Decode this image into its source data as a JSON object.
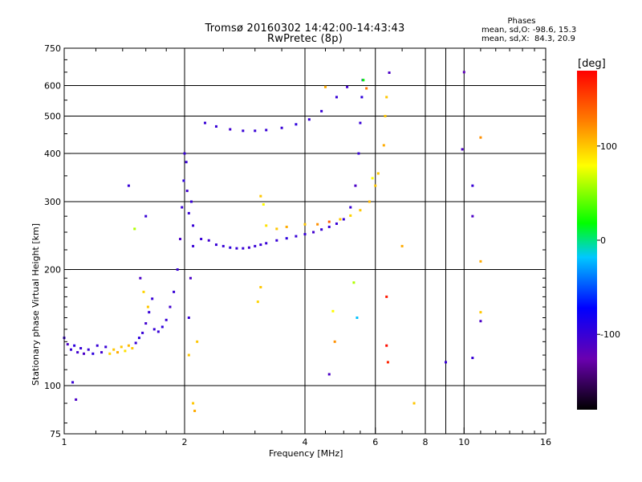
{
  "title": "Tromsø 20160302 14:42:00-14:43:43",
  "subtitle": "RwPretec (8p)",
  "phase_stats": {
    "heading": "Phases",
    "line_o": "mean, sd,O: -98.6, 15.3",
    "line_x": "mean, sd,X:  84.3, 20.9"
  },
  "colorbar": {
    "unit_label": "[deg]",
    "tick_labels": [
      "100",
      "0",
      "-100"
    ],
    "tick_values": [
      100,
      0,
      -100
    ],
    "range": [
      -180,
      180
    ]
  },
  "chart_data": {
    "type": "scatter",
    "title": "Tromsø 20160302 14:42:00-14:43:43",
    "subtitle": "RwPretec (8p)",
    "xlabel": "Frequency [MHz]",
    "ylabel": "Stationary phase Virtual Height [km]",
    "xscale": "log",
    "yscale": "log",
    "xlim": [
      1,
      16
    ],
    "ylim": [
      75,
      750
    ],
    "x_ticks": [
      1,
      2,
      4,
      6,
      8,
      10,
      16
    ],
    "x_tick_labels": [
      "1",
      "2",
      "4",
      "6",
      "8",
      "10",
      "16"
    ],
    "x_minor_ticks": [
      9
    ],
    "y_ticks": [
      75,
      100,
      200,
      300,
      400,
      500,
      600,
      750
    ],
    "y_tick_labels": [
      "75",
      "100",
      "200",
      "300",
      "400",
      "500",
      "600",
      "750"
    ],
    "y_minor_ticks": [
      150,
      250,
      350,
      450,
      550,
      650,
      700
    ],
    "grid": true,
    "color_scale": "rainbow",
    "series": [
      {
        "name": "",
        "points": [
          {
            "x": 1.0,
            "y": 133,
            "phase": -100
          },
          {
            "x": 1.02,
            "y": 128,
            "phase": -110
          },
          {
            "x": 1.04,
            "y": 124,
            "phase": -100
          },
          {
            "x": 1.06,
            "y": 127,
            "phase": -95
          },
          {
            "x": 1.08,
            "y": 122,
            "phase": -105
          },
          {
            "x": 1.1,
            "y": 125,
            "phase": -100
          },
          {
            "x": 1.12,
            "y": 121,
            "phase": -110
          },
          {
            "x": 1.15,
            "y": 124,
            "phase": -100
          },
          {
            "x": 1.18,
            "y": 121,
            "phase": -95
          },
          {
            "x": 1.21,
            "y": 127,
            "phase": -100
          },
          {
            "x": 1.24,
            "y": 122,
            "phase": -105
          },
          {
            "x": 1.27,
            "y": 126,
            "phase": -100
          },
          {
            "x": 1.3,
            "y": 121,
            "phase": 95
          },
          {
            "x": 1.33,
            "y": 124,
            "phase": 100
          },
          {
            "x": 1.36,
            "y": 122,
            "phase": 110
          },
          {
            "x": 1.39,
            "y": 126,
            "phase": 100
          },
          {
            "x": 1.42,
            "y": 123,
            "phase": 90
          },
          {
            "x": 1.45,
            "y": 127,
            "phase": 105
          },
          {
            "x": 1.48,
            "y": 125,
            "phase": 100
          },
          {
            "x": 1.51,
            "y": 129,
            "phase": -100
          },
          {
            "x": 1.54,
            "y": 133,
            "phase": -95
          },
          {
            "x": 1.57,
            "y": 137,
            "phase": -100
          },
          {
            "x": 1.6,
            "y": 145,
            "phase": -105
          },
          {
            "x": 1.63,
            "y": 155,
            "phase": -100
          },
          {
            "x": 1.66,
            "y": 168,
            "phase": -100
          },
          {
            "x": 1.55,
            "y": 190,
            "phase": -110
          },
          {
            "x": 1.58,
            "y": 175,
            "phase": 95
          },
          {
            "x": 1.62,
            "y": 160,
            "phase": 100
          },
          {
            "x": 1.68,
            "y": 140,
            "phase": -100
          },
          {
            "x": 1.72,
            "y": 138,
            "phase": -100
          },
          {
            "x": 1.76,
            "y": 142,
            "phase": -95
          },
          {
            "x": 1.8,
            "y": 148,
            "phase": -100
          },
          {
            "x": 1.84,
            "y": 160,
            "phase": -105
          },
          {
            "x": 1.88,
            "y": 175,
            "phase": -100
          },
          {
            "x": 1.92,
            "y": 200,
            "phase": -100
          },
          {
            "x": 1.95,
            "y": 240,
            "phase": -110
          },
          {
            "x": 1.97,
            "y": 290,
            "phase": -100
          },
          {
            "x": 1.99,
            "y": 340,
            "phase": -95
          },
          {
            "x": 2.0,
            "y": 400,
            "phase": -100
          },
          {
            "x": 2.02,
            "y": 380,
            "phase": -100
          },
          {
            "x": 2.03,
            "y": 320,
            "phase": -105
          },
          {
            "x": 2.05,
            "y": 280,
            "phase": -100
          },
          {
            "x": 2.08,
            "y": 300,
            "phase": -100
          },
          {
            "x": 2.1,
            "y": 260,
            "phase": -100
          },
          {
            "x": 2.05,
            "y": 150,
            "phase": -100
          },
          {
            "x": 2.07,
            "y": 190,
            "phase": -110
          },
          {
            "x": 2.1,
            "y": 230,
            "phase": -100
          },
          {
            "x": 2.2,
            "y": 240,
            "phase": -100
          },
          {
            "x": 2.3,
            "y": 238,
            "phase": -105
          },
          {
            "x": 2.4,
            "y": 232,
            "phase": -100
          },
          {
            "x": 2.5,
            "y": 230,
            "phase": -100
          },
          {
            "x": 2.6,
            "y": 228,
            "phase": -95
          },
          {
            "x": 2.7,
            "y": 227,
            "phase": -100
          },
          {
            "x": 2.8,
            "y": 227,
            "phase": -100
          },
          {
            "x": 2.9,
            "y": 228,
            "phase": -105
          },
          {
            "x": 3.0,
            "y": 230,
            "phase": -100
          },
          {
            "x": 3.1,
            "y": 232,
            "phase": -100
          },
          {
            "x": 3.2,
            "y": 234,
            "phase": -100
          },
          {
            "x": 3.4,
            "y": 238,
            "phase": -100
          },
          {
            "x": 3.6,
            "y": 241,
            "phase": -95
          },
          {
            "x": 3.8,
            "y": 244,
            "phase": -100
          },
          {
            "x": 4.0,
            "y": 247,
            "phase": -100
          },
          {
            "x": 4.2,
            "y": 250,
            "phase": -105
          },
          {
            "x": 4.4,
            "y": 254,
            "phase": -100
          },
          {
            "x": 4.6,
            "y": 258,
            "phase": -100
          },
          {
            "x": 4.8,
            "y": 263,
            "phase": -100
          },
          {
            "x": 5.0,
            "y": 270,
            "phase": -100
          },
          {
            "x": 5.2,
            "y": 290,
            "phase": -100
          },
          {
            "x": 5.35,
            "y": 330,
            "phase": -110
          },
          {
            "x": 5.45,
            "y": 400,
            "phase": -100
          },
          {
            "x": 5.5,
            "y": 480,
            "phase": -100
          },
          {
            "x": 5.55,
            "y": 560,
            "phase": -95
          },
          {
            "x": 5.58,
            "y": 620,
            "phase": -100
          },
          {
            "x": 2.25,
            "y": 480,
            "phase": -100
          },
          {
            "x": 2.4,
            "y": 470,
            "phase": -100
          },
          {
            "x": 2.6,
            "y": 462,
            "phase": -105
          },
          {
            "x": 2.8,
            "y": 458,
            "phase": -100
          },
          {
            "x": 3.0,
            "y": 458,
            "phase": -100
          },
          {
            "x": 3.2,
            "y": 460,
            "phase": -100
          },
          {
            "x": 3.5,
            "y": 466,
            "phase": -100
          },
          {
            "x": 3.8,
            "y": 476,
            "phase": -95
          },
          {
            "x": 4.1,
            "y": 490,
            "phase": -100
          },
          {
            "x": 4.4,
            "y": 515,
            "phase": -100
          },
          {
            "x": 4.8,
            "y": 560,
            "phase": -100
          },
          {
            "x": 5.1,
            "y": 595,
            "phase": -105
          },
          {
            "x": 3.2,
            "y": 260,
            "phase": 90
          },
          {
            "x": 3.4,
            "y": 255,
            "phase": 100
          },
          {
            "x": 3.6,
            "y": 258,
            "phase": 110
          },
          {
            "x": 4.0,
            "y": 262,
            "phase": 100
          },
          {
            "x": 4.3,
            "y": 262,
            "phase": 120
          },
          {
            "x": 4.6,
            "y": 266,
            "phase": 140
          },
          {
            "x": 4.9,
            "y": 270,
            "phase": 100
          },
          {
            "x": 5.2,
            "y": 276,
            "phase": 95
          },
          {
            "x": 5.5,
            "y": 285,
            "phase": 100
          },
          {
            "x": 5.8,
            "y": 300,
            "phase": 105
          },
          {
            "x": 6.0,
            "y": 330,
            "phase": 100
          },
          {
            "x": 6.3,
            "y": 420,
            "phase": 110
          },
          {
            "x": 6.35,
            "y": 500,
            "phase": 100
          },
          {
            "x": 6.4,
            "y": 560,
            "phase": 100
          },
          {
            "x": 5.7,
            "y": 590,
            "phase": 130
          },
          {
            "x": 3.1,
            "y": 310,
            "phase": 100
          },
          {
            "x": 3.15,
            "y": 295,
            "phase": 80
          },
          {
            "x": 1.45,
            "y": 330,
            "phase": -100
          },
          {
            "x": 1.5,
            "y": 255,
            "phase": 60
          },
          {
            "x": 1.6,
            "y": 275,
            "phase": -100
          },
          {
            "x": 1.05,
            "y": 102,
            "phase": -100
          },
          {
            "x": 1.07,
            "y": 92,
            "phase": -110
          },
          {
            "x": 2.1,
            "y": 90,
            "phase": 100
          },
          {
            "x": 2.12,
            "y": 86,
            "phase": 110
          },
          {
            "x": 2.15,
            "y": 130,
            "phase": 100
          },
          {
            "x": 3.1,
            "y": 180,
            "phase": 100
          },
          {
            "x": 3.05,
            "y": 165,
            "phase": 95
          },
          {
            "x": 4.7,
            "y": 156,
            "phase": 80
          },
          {
            "x": 4.75,
            "y": 130,
            "phase": 120
          },
          {
            "x": 4.6,
            "y": 107,
            "phase": -110
          },
          {
            "x": 5.3,
            "y": 185,
            "phase": 60
          },
          {
            "x": 5.4,
            "y": 150,
            "phase": -20
          },
          {
            "x": 6.4,
            "y": 170,
            "phase": 170
          },
          {
            "x": 6.4,
            "y": 127,
            "phase": 175
          },
          {
            "x": 6.45,
            "y": 115,
            "phase": 165
          },
          {
            "x": 6.5,
            "y": 648,
            "phase": -110
          },
          {
            "x": 7.0,
            "y": 230,
            "phase": 110
          },
          {
            "x": 7.5,
            "y": 90,
            "phase": 100
          },
          {
            "x": 9.0,
            "y": 115,
            "phase": -100
          },
          {
            "x": 10.0,
            "y": 650,
            "phase": -120
          },
          {
            "x": 9.9,
            "y": 410,
            "phase": -110
          },
          {
            "x": 10.5,
            "y": 330,
            "phase": -100
          },
          {
            "x": 10.5,
            "y": 275,
            "phase": -110
          },
          {
            "x": 10.5,
            "y": 118,
            "phase": -100
          },
          {
            "x": 11.0,
            "y": 440,
            "phase": 120
          },
          {
            "x": 11.0,
            "y": 210,
            "phase": 110
          },
          {
            "x": 11.0,
            "y": 155,
            "phase": 100
          },
          {
            "x": 11.0,
            "y": 147,
            "phase": -110
          },
          {
            "x": 6.1,
            "y": 355,
            "phase": 100
          },
          {
            "x": 5.9,
            "y": 345,
            "phase": 80
          },
          {
            "x": 5.6,
            "y": 620,
            "phase": 20
          },
          {
            "x": 2.05,
            "y": 120,
            "phase": 100
          },
          {
            "x": 4.5,
            "y": 595,
            "phase": 110
          }
        ]
      }
    ]
  }
}
